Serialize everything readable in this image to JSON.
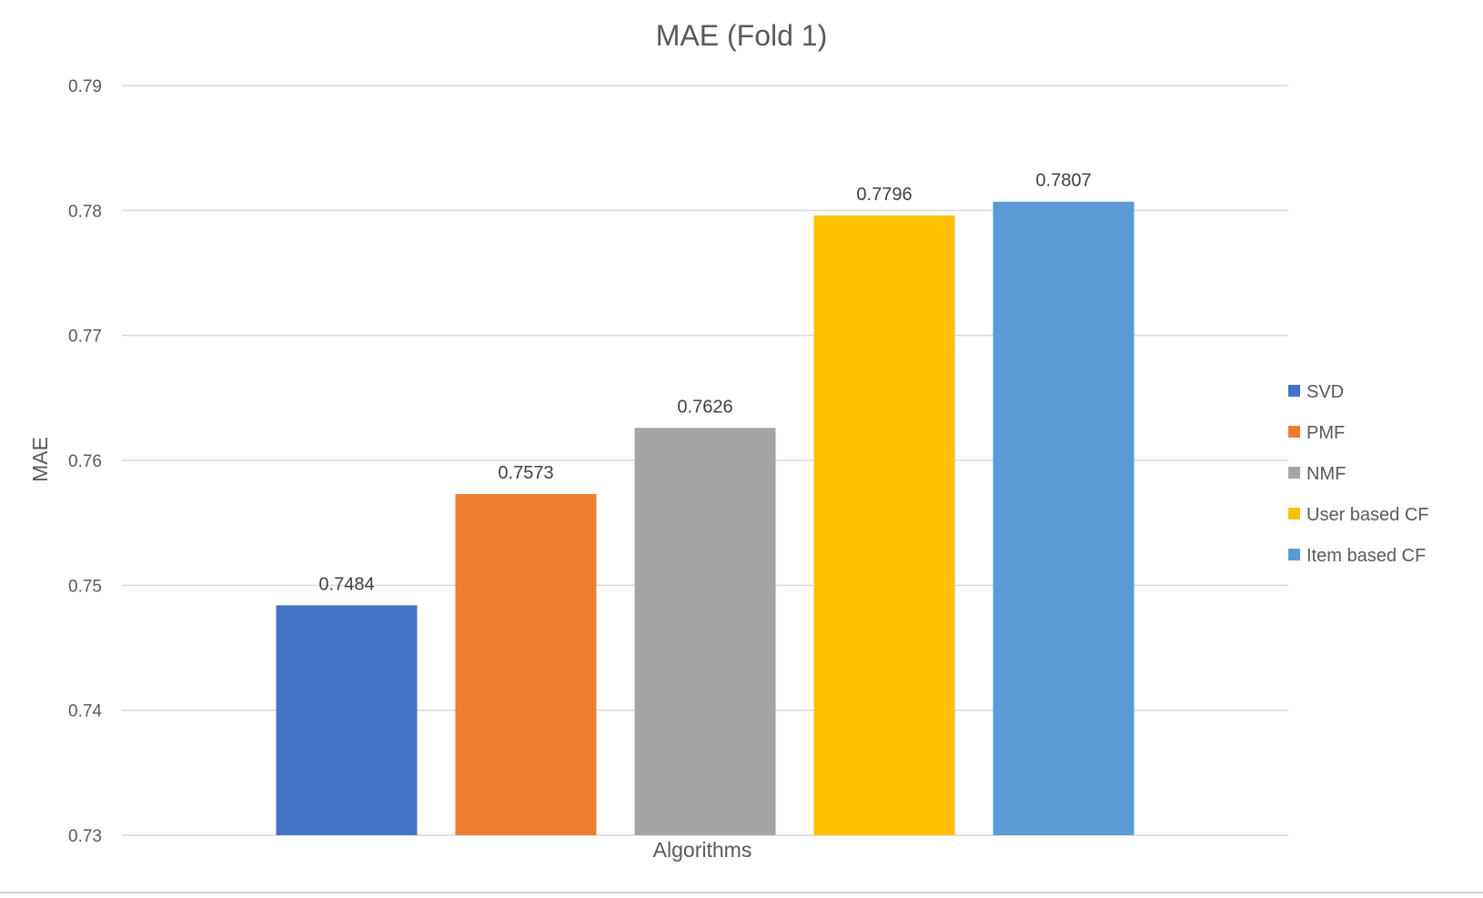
{
  "chart_data": {
    "type": "bar",
    "title": "MAE (Fold 1)",
    "xlabel": "Algorithms",
    "ylabel": "MAE",
    "ylim": [
      0.73,
      0.79
    ],
    "yticks": [
      "0.73",
      "0.74",
      "0.75",
      "0.76",
      "0.77",
      "0.78",
      "0.79"
    ],
    "grid": true,
    "legend_position": "right",
    "categories": [
      "Algorithms"
    ],
    "series": [
      {
        "name": "SVD",
        "values": [
          0.7484
        ],
        "label": "0.7484",
        "color": "#4472C4"
      },
      {
        "name": "PMF",
        "values": [
          0.7573
        ],
        "label": "0.7573",
        "color": "#ED7D31"
      },
      {
        "name": "NMF",
        "values": [
          0.7626
        ],
        "label": "0.7626",
        "color": "#A5A5A5"
      },
      {
        "name": "User based CF",
        "values": [
          0.7796
        ],
        "label": "0.7796",
        "color": "#FFC000"
      },
      {
        "name": "Item based CF",
        "values": [
          0.7807
        ],
        "label": "0.7807",
        "color": "#5B9BD5"
      }
    ]
  }
}
